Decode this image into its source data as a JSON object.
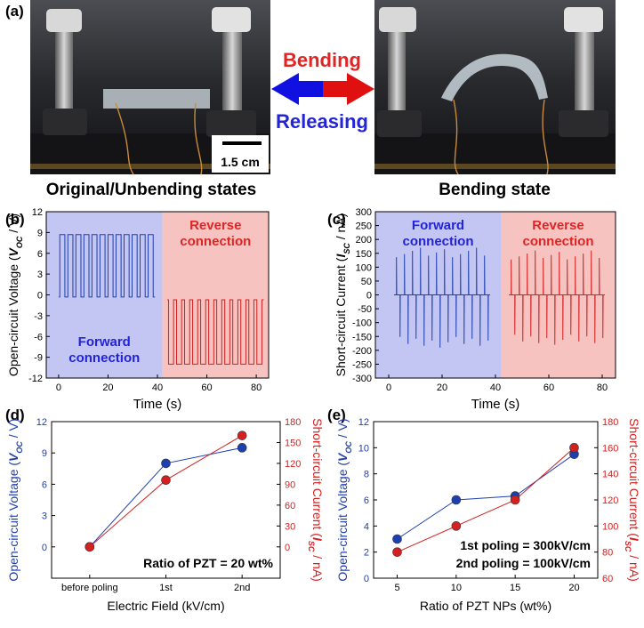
{
  "panel_labels": {
    "a": "(a)",
    "b": "(b)",
    "c": "(c)",
    "d": "(d)",
    "e": "(e)"
  },
  "photos": {
    "left_caption": "Original/Unbending states",
    "right_caption": "Bending state",
    "scale_bar": "1.5 cm",
    "arrow_top": "Bending",
    "arrow_bottom": "Releasing"
  },
  "colors": {
    "blue": "#1f3fb0",
    "red": "#d42020",
    "blue_bg": "#c3c6f3",
    "red_bg": "#f6c3c1",
    "blue_text": "#2323d8",
    "red_text": "#e02525"
  },
  "chart_data": [
    {
      "id": "b",
      "type": "line",
      "xlabel": "Time (s)",
      "ylabel_parts": [
        "Open-circuit Voltage (",
        "V",
        "OC",
        " / V)"
      ],
      "xlim": [
        -5,
        85
      ],
      "ylim": [
        -12,
        12
      ],
      "xticks": [
        0,
        20,
        40,
        60,
        80
      ],
      "yticks": [
        -12,
        -9,
        -6,
        -3,
        0,
        3,
        6,
        9,
        12
      ],
      "regions": [
        {
          "x": [
            -5,
            42
          ],
          "label": [
            "Forward",
            "connection"
          ],
          "color": "blue"
        },
        {
          "x": [
            42,
            85
          ],
          "label": [
            "Reverse",
            "connection"
          ],
          "color": "red"
        }
      ],
      "series": [
        {
          "color": "blue",
          "pulse": "square",
          "x_start": 0,
          "x_end": 39,
          "peak": 8.7,
          "base": -0.3,
          "count": 12
        },
        {
          "color": "red",
          "pulse": "square",
          "x_start": 44,
          "x_end": 83,
          "peak": -10,
          "base": -0.7,
          "count": 12
        }
      ]
    },
    {
      "id": "c",
      "type": "line",
      "xlabel": "Time (s)",
      "ylabel_parts": [
        "Short-circuit Current (",
        "I",
        "SC",
        " / nA)"
      ],
      "xlim": [
        -5,
        85
      ],
      "ylim": [
        -300,
        300
      ],
      "xticks": [
        0,
        20,
        40,
        60,
        80
      ],
      "yticks": [
        -300,
        -250,
        -200,
        -150,
        -100,
        -50,
        0,
        50,
        100,
        150,
        200,
        250,
        300
      ],
      "regions": [
        {
          "x": [
            -5,
            42
          ],
          "label": [
            "Forward",
            "connection"
          ],
          "color": "blue"
        },
        {
          "x": [
            42,
            85
          ],
          "label": [
            "Reverse",
            "connection"
          ],
          "color": "red"
        }
      ],
      "series": [
        {
          "color": "blue",
          "pulse": "spike",
          "x_start": 2,
          "x_end": 38,
          "peak": 170,
          "trough": -190,
          "count": 12
        },
        {
          "color": "red",
          "pulse": "spike",
          "x_start": 45,
          "x_end": 81,
          "peak": 160,
          "trough": -180,
          "count": 12
        }
      ]
    },
    {
      "id": "d",
      "type": "line",
      "xlabel": "Electric Field (kV/cm)",
      "ylabel_left_parts": [
        "Open-circuit Voltage (",
        "V",
        "OC",
        " / V)"
      ],
      "ylabel_right_parts": [
        "Short-circuit Current (",
        "I",
        "SC",
        " / nA)"
      ],
      "categories": [
        "before poling",
        "1st",
        "2nd"
      ],
      "ylim_left": [
        -3,
        12
      ],
      "yticks_left": [
        0,
        3,
        6,
        9,
        12
      ],
      "ylim_right": [
        -45,
        180
      ],
      "yticks_right": [
        0,
        30,
        60,
        90,
        120,
        150,
        180
      ],
      "annotation": [
        "Ratio of PZT = 20 wt%"
      ],
      "series": [
        {
          "axis": "left",
          "color": "blue",
          "values": [
            0,
            8.0,
            9.5
          ]
        },
        {
          "axis": "right",
          "color": "red",
          "values": [
            0,
            96,
            160
          ]
        }
      ]
    },
    {
      "id": "e",
      "type": "line",
      "xlabel": "Ratio of PZT NPs (wt%)",
      "ylabel_left_parts": [
        "Open-circuit Voltage (",
        "V",
        "OC",
        " / V)"
      ],
      "ylabel_right_parts": [
        "Short-circuit Current (",
        "I",
        "SC",
        " / nA)"
      ],
      "x": [
        5,
        10,
        15,
        20
      ],
      "xlim": [
        3,
        22
      ],
      "xticks": [
        5,
        10,
        15,
        20
      ],
      "ylim_left": [
        0,
        12
      ],
      "yticks_left": [
        0,
        2,
        4,
        6,
        8,
        10,
        12
      ],
      "ylim_right": [
        60,
        180
      ],
      "yticks_right": [
        60,
        80,
        100,
        120,
        140,
        160,
        180
      ],
      "annotation": [
        "1st poling = 300kV/cm",
        "2nd poling = 100kV/cm"
      ],
      "series": [
        {
          "axis": "left",
          "color": "blue",
          "values": [
            3.0,
            6.0,
            6.3,
            9.5
          ]
        },
        {
          "axis": "right",
          "color": "red",
          "values": [
            80,
            100,
            120,
            160
          ]
        }
      ]
    }
  ]
}
